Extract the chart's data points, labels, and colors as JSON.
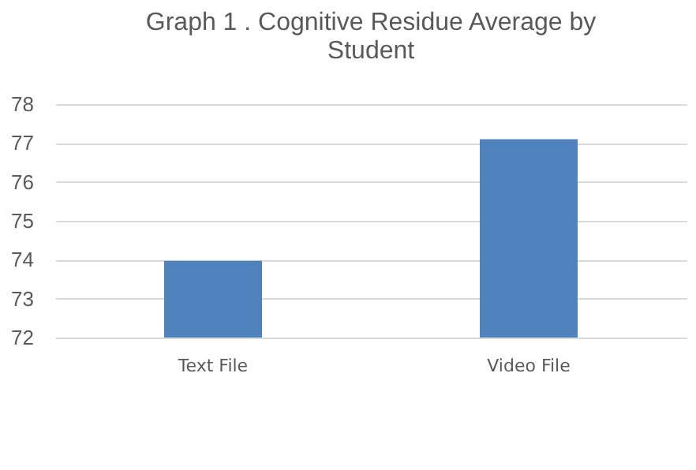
{
  "chart_data": {
    "type": "bar",
    "title": [
      "Graph 1 . Cognitive Residue Average by",
      "Student"
    ],
    "categories": [
      "Text File",
      "Video File"
    ],
    "values": [
      73.97,
      77.1
    ],
    "color": "#4f81bd",
    "ylim": [
      72,
      78
    ],
    "yticks": [
      72,
      73,
      74,
      75,
      76,
      77,
      78
    ],
    "grid": "y"
  }
}
